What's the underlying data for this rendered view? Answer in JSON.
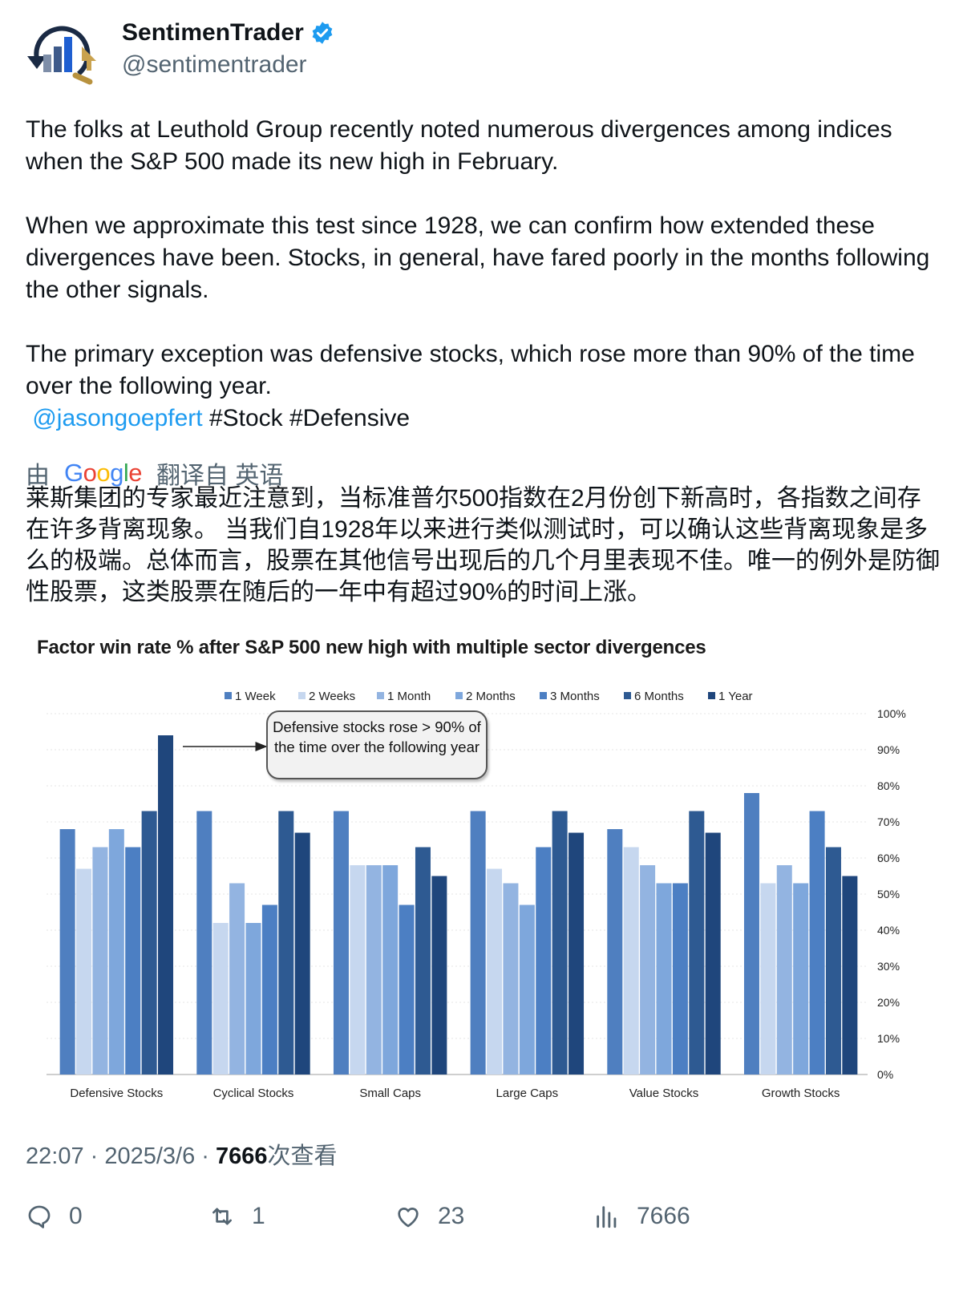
{
  "author": {
    "name": "SentimenTrader",
    "handle": "@sentimentrader"
  },
  "tweet": {
    "paragraph1": "The folks at Leuthold Group recently noted numerous divergences among indices when the S&P 500 made its new high in February.",
    "paragraph2": "When we approximate this test since 1928, we can confirm how extended these divergences have been. Stocks, in general, have fared poorly in the months following the other signals.",
    "paragraph3": "The primary exception was defensive stocks, which rose more than 90% of the time over the following year.",
    "mention": "@jasongoepfert",
    "hashtags": "#Stock #Defensive"
  },
  "translation": {
    "by_label": "由",
    "google": "Google",
    "from_label": "翻译自 英语",
    "text": "莱斯集团的专家最近注意到，当标准普尔500指数在2月份创下新高时，各指数之间存在许多背离现象。 当我们自1928年以来进行类似测试时，可以确认这些背离现象是多么的极端。总体而言，股票在其他信号出现后的几个月里表现不佳。唯一的例外是防御性股票，这类股票在随后的一年中有超过90%的时间上涨。"
  },
  "chart_data": {
    "type": "bar",
    "title": "Factor win rate % after S&P 500 new high with multiple sector divergences",
    "categories": [
      "Defensive Stocks",
      "Cyclical Stocks",
      "Small Caps",
      "Large Caps",
      "Value Stocks",
      "Growth Stocks"
    ],
    "series": [
      {
        "name": "1 Week",
        "color": "#4f7fc0",
        "values": [
          68,
          73,
          73,
          73,
          68,
          78
        ]
      },
      {
        "name": "2 Weeks",
        "color": "#c6d7ef",
        "values": [
          57,
          42,
          58,
          57,
          63,
          53
        ]
      },
      {
        "name": "1 Month",
        "color": "#93b4e1",
        "values": [
          63,
          53,
          58,
          53,
          58,
          58
        ]
      },
      {
        "name": "2 Months",
        "color": "#7ea7dc",
        "values": [
          68,
          42,
          58,
          47,
          53,
          53
        ]
      },
      {
        "name": "3 Months",
        "color": "#4c7fc3",
        "values": [
          63,
          47,
          47,
          63,
          53,
          73
        ]
      },
      {
        "name": "6 Months",
        "color": "#2e5a92",
        "values": [
          73,
          73,
          63,
          73,
          73,
          63
        ]
      },
      {
        "name": "1 Year",
        "color": "#1f467c",
        "values": [
          94,
          67,
          55,
          67,
          67,
          55
        ]
      }
    ],
    "ylim": [
      0,
      100
    ],
    "yticks": [
      "0%",
      "10%",
      "20%",
      "30%",
      "40%",
      "50%",
      "60%",
      "70%",
      "80%",
      "90%",
      "100%"
    ],
    "legend_position": "top",
    "y_axis_position": "right",
    "grid": true,
    "annotation": "Defensive stocks rose > 90% of the time over the following year"
  },
  "meta": {
    "time": "22:07 · 2025/3/6 · ",
    "views_count": "7666",
    "views_label": "次查看"
  },
  "actions": {
    "replies": "0",
    "retweets": "1",
    "likes": "23",
    "views": "7666"
  }
}
